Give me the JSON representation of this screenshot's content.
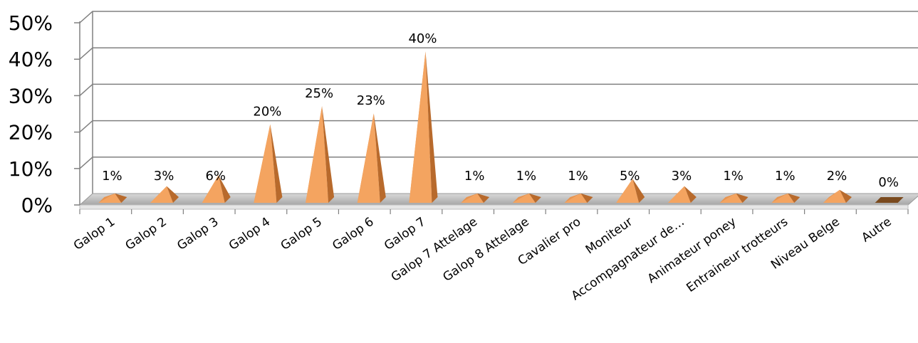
{
  "chart_data": {
    "type": "bar",
    "style": "3d-pyramid",
    "categories": [
      "Galop 1",
      "Galop 2",
      "Galop 3",
      "Galop 4",
      "Galop 5",
      "Galop 6",
      "Galop 7",
      "Galop 7 Attelage",
      "Galop 8 Attelage",
      "Cavalier pro",
      "Moniteur",
      "Accompagnateur de…",
      "Animateur poney",
      "Entraineur trotteurs",
      "Niveau Belge",
      "Autre"
    ],
    "values": [
      1,
      3,
      6,
      20,
      25,
      23,
      40,
      1,
      1,
      1,
      5,
      3,
      1,
      1,
      2,
      0
    ],
    "data_labels": [
      "1%",
      "3%",
      "6%",
      "20%",
      "25%",
      "23%",
      "40%",
      "1%",
      "1%",
      "1%",
      "5%",
      "3%",
      "1%",
      "1%",
      "2%",
      "0%"
    ],
    "yticks": [
      0,
      10,
      20,
      30,
      40,
      50
    ],
    "ytick_labels": [
      "0%",
      "10%",
      "20%",
      "30%",
      "40%",
      "50%"
    ],
    "ylim": [
      0,
      50
    ],
    "grid": true,
    "legend": "none",
    "colors": {
      "bar_light": "#f4a460",
      "bar_mid": "#e8944f",
      "bar_dark": "#b86a2c",
      "bar_zero": "#7a4a1e",
      "floor": "#c8c8c8",
      "grid": "#808080"
    }
  }
}
